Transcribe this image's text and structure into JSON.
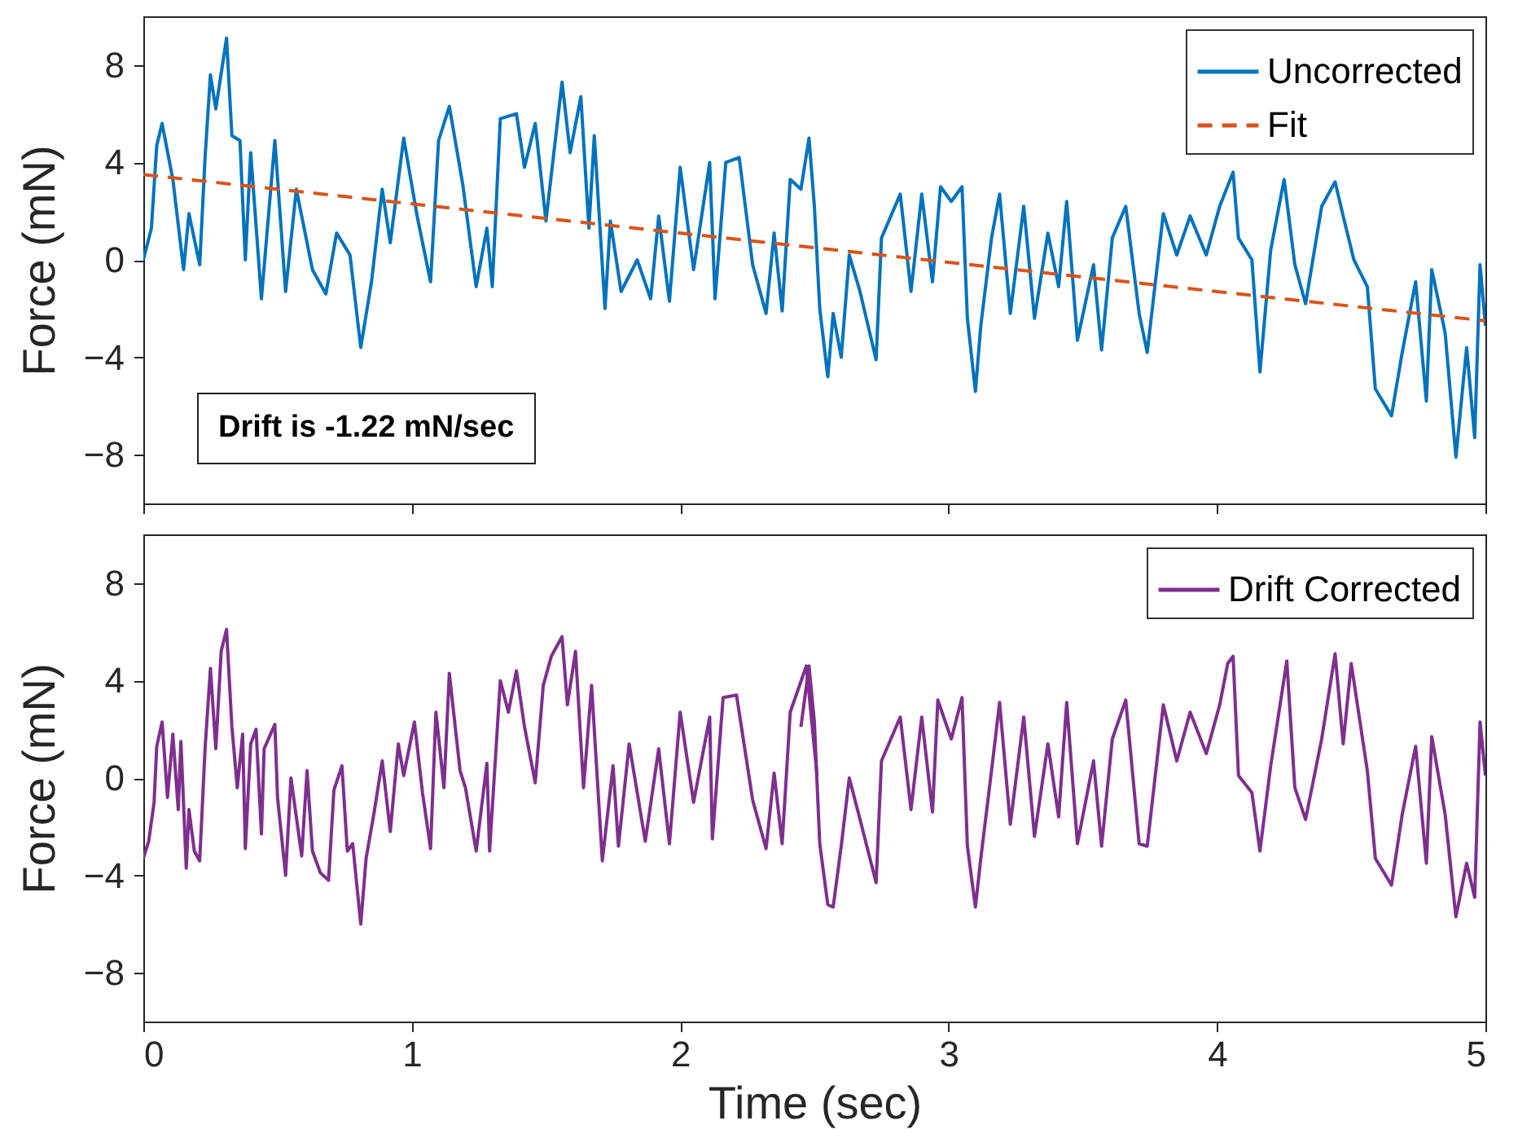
{
  "chart_data": [
    {
      "type": "line",
      "ylabel": "Force (mN)",
      "xlim": [
        0,
        5
      ],
      "xticks": [
        0,
        1,
        2,
        3,
        4,
        5
      ],
      "ylim": [
        -10,
        10
      ],
      "yticks": [
        -8,
        -4,
        0,
        4,
        8
      ],
      "tick_labels": "y",
      "legend": "top right",
      "grid": false,
      "annotations": [
        "Drift is -1.22 mN/sec"
      ],
      "x": [
        0.0,
        0.03,
        0.05,
        0.07,
        0.11,
        0.15,
        0.17,
        0.21,
        0.23,
        0.25,
        0.27,
        0.31,
        0.33,
        0.36,
        0.38,
        0.4,
        0.44,
        0.49,
        0.53,
        0.57,
        0.63,
        0.68,
        0.72,
        0.77,
        0.81,
        0.85,
        0.89,
        0.92,
        0.97,
        1.02,
        1.07,
        1.1,
        1.14,
        1.19,
        1.24,
        1.28,
        1.3,
        1.33,
        1.39,
        1.42,
        1.46,
        1.5,
        1.56,
        1.59,
        1.63,
        1.66,
        1.68,
        1.72,
        1.74,
        1.78,
        1.84,
        1.89,
        1.92,
        1.96,
        2.0,
        2.05,
        2.11,
        2.13,
        2.17,
        2.22,
        2.27,
        2.32,
        2.35,
        2.38,
        2.41,
        2.45,
        2.48,
        2.5,
        2.52,
        2.55,
        2.57,
        2.6,
        2.63,
        2.67,
        2.73,
        2.75,
        2.82,
        2.86,
        2.9,
        2.94,
        2.97,
        3.01,
        3.05,
        3.07,
        3.1,
        3.12,
        3.16,
        3.19,
        3.23,
        3.28,
        3.32,
        3.37,
        3.41,
        3.44,
        3.48,
        3.54,
        3.57,
        3.61,
        3.66,
        3.71,
        3.74,
        3.8,
        3.85,
        3.9,
        3.96,
        4.01,
        4.06,
        4.08,
        4.13,
        4.16,
        4.2,
        4.25,
        4.29,
        4.33,
        4.39,
        4.44,
        4.47,
        4.51,
        4.56,
        4.59,
        4.65,
        4.69,
        4.74,
        4.78,
        4.8,
        4.85,
        4.89,
        4.93,
        4.96,
        4.98,
        5.0
      ],
      "series": [
        {
          "name": "Uncorrected",
          "color": "#0072bd",
          "line_style": "solid",
          "values": [
            0.0,
            1.3,
            4.7,
            5.6,
            3.3,
            -0.4,
            1.9,
            -0.2,
            4.2,
            7.6,
            6.2,
            9.1,
            5.1,
            4.9,
            0.0,
            4.4,
            -1.6,
            4.9,
            -1.3,
            2.9,
            -0.4,
            -1.4,
            1.1,
            0.2,
            -3.6,
            -0.9,
            2.9,
            0.7,
            5.0,
            1.8,
            -0.9,
            4.9,
            6.3,
            3.1,
            -1.1,
            1.3,
            -1.1,
            5.8,
            6.0,
            3.8,
            5.6,
            1.6,
            7.3,
            4.4,
            6.7,
            1.3,
            5.1,
            -2.0,
            1.6,
            -1.3,
            0.0,
            -1.6,
            1.8,
            -1.7,
            3.8,
            -0.4,
            4.0,
            -1.6,
            4.0,
            4.2,
            -0.2,
            -2.2,
            1.1,
            -2.1,
            3.3,
            2.9,
            5.0,
            2.2,
            -2.0,
            -4.8,
            -2.2,
            -4.0,
            0.2,
            -1.3,
            -4.1,
            0.9,
            2.7,
            -1.3,
            2.7,
            -0.9,
            3.0,
            2.4,
            3.0,
            -2.4,
            -5.4,
            -2.7,
            0.9,
            2.7,
            -2.2,
            2.2,
            -2.4,
            1.1,
            -1.1,
            2.4,
            -3.3,
            -0.2,
            -3.7,
            0.9,
            2.2,
            -2.2,
            -3.8,
            1.9,
            0.2,
            1.8,
            0.2,
            2.2,
            3.6,
            0.9,
            0.0,
            -4.6,
            0.4,
            3.3,
            -0.2,
            -1.8,
            2.2,
            3.2,
            1.8,
            0.0,
            -1.1,
            -5.3,
            -6.4,
            -3.8,
            -0.9,
            -5.8,
            -0.4,
            -3.0,
            -8.1,
            -3.6,
            -7.3,
            -0.2,
            -2.7
          ]
        },
        {
          "name": "Fit",
          "color": "#d95319",
          "line_style": "dashed",
          "x": [
            0,
            5
          ],
          "values": [
            3.5,
            -2.5
          ]
        }
      ]
    },
    {
      "type": "line",
      "xlabel": "Time (sec)",
      "ylabel": "Force (mN)",
      "xlim": [
        0,
        5
      ],
      "xticks": [
        0,
        1,
        2,
        3,
        4,
        5
      ],
      "ylim": [
        -10,
        10
      ],
      "yticks": [
        -8,
        -4,
        0,
        4,
        8
      ],
      "legend": "top right",
      "grid": false,
      "x": [
        0.0,
        0.02,
        0.04,
        0.05,
        0.07,
        0.09,
        0.11,
        0.13,
        0.14,
        0.16,
        0.17,
        0.19,
        0.21,
        0.23,
        0.25,
        0.27,
        0.29,
        0.31,
        0.33,
        0.35,
        0.37,
        0.38,
        0.4,
        0.42,
        0.44,
        0.45,
        0.49,
        0.5,
        0.53,
        0.55,
        0.59,
        0.61,
        0.63,
        0.66,
        0.69,
        0.71,
        0.74,
        0.76,
        0.78,
        0.81,
        0.83,
        0.86,
        0.89,
        0.92,
        0.95,
        0.97,
        1.01,
        1.04,
        1.07,
        1.09,
        1.12,
        1.14,
        1.18,
        1.2,
        1.24,
        1.28,
        1.29,
        1.33,
        1.36,
        1.39,
        1.42,
        1.46,
        1.49,
        1.52,
        1.56,
        1.58,
        1.61,
        1.64,
        1.67,
        1.71,
        1.75,
        1.77,
        1.81,
        1.87,
        1.92,
        1.96,
        2.0,
        2.05,
        2.11,
        2.12,
        2.16,
        2.21,
        2.27,
        2.32,
        2.35,
        2.38,
        2.41,
        2.47,
        2.51
      ],
      "series": [
        {
          "name": "Drift Corrected",
          "color": "#7e2f8e",
          "values": [
            -3.3,
            -2.6,
            -1.0,
            1.3,
            2.3,
            -0.8,
            1.8,
            -1.3,
            1.5,
            -3.7,
            -1.3,
            -3.0,
            -3.4,
            1.2,
            4.5,
            1.2,
            5.2,
            6.1,
            2.1,
            -0.4,
            1.8,
            -2.9,
            1.4,
            2.0,
            -2.3,
            1.2,
            2.2,
            -0.8,
            -4.0,
            0.0,
            -3.2,
            0.3,
            -3.0,
            -3.9,
            -4.2,
            -0.5,
            0.5,
            -3.0,
            -2.7,
            -6.0,
            -3.3,
            -1.4,
            0.7,
            -2.2,
            1.4,
            0.1,
            2.3,
            -0.6,
            -2.9,
            2.7,
            -0.4,
            4.3,
            0.3,
            -0.4,
            -3.0,
            0.6,
            -3.0,
            4.0,
            2.7,
            4.4,
            2.1,
            -0.2,
            3.8,
            5.0,
            5.8,
            3.0,
            5.2,
            -0.4,
            3.8,
            -3.4,
            0.5,
            -2.8,
            1.4,
            -2.6,
            1.2,
            -2.7,
            2.7,
            -1.0,
            2.5,
            -2.5,
            3.3,
            3.4,
            -0.9,
            -2.9,
            0.2,
            -2.7,
            2.7,
            4.6,
            0.1
          ]
        },
        {
          "name": null,
          "color": "#7e2f8e",
          "x": [
            2.45,
            2.48,
            2.5,
            2.52,
            2.55,
            2.57,
            2.6,
            2.63,
            2.67,
            2.73,
            2.75,
            2.82,
            2.86,
            2.9,
            2.94,
            2.96,
            3.01,
            3.05,
            3.07,
            3.1,
            3.12,
            3.16,
            3.19,
            3.23,
            3.28,
            3.32,
            3.37,
            3.41,
            3.44,
            3.48,
            3.54,
            3.57,
            3.61,
            3.66,
            3.71,
            3.74,
            3.8,
            3.85,
            3.9,
            3.96,
            4.01,
            4.04,
            4.06,
            4.08,
            4.13,
            4.16,
            4.2,
            4.26,
            4.29,
            4.33,
            4.39,
            4.44,
            4.47,
            4.5,
            4.56,
            4.59,
            4.65,
            4.69,
            4.74,
            4.78,
            4.8,
            4.85,
            4.89,
            4.93,
            4.96,
            4.98,
            5.0
          ],
          "values": [
            2.1,
            4.6,
            2.3,
            -2.7,
            -5.2,
            -5.3,
            -2.8,
            0.0,
            -1.7,
            -4.3,
            0.7,
            2.5,
            -1.3,
            2.5,
            -1.4,
            3.2,
            1.6,
            3.3,
            -2.8,
            -5.3,
            -3.3,
            0.3,
            3.1,
            -1.9,
            2.5,
            -2.4,
            1.4,
            -1.6,
            3.1,
            -2.7,
            0.7,
            -2.8,
            1.6,
            3.2,
            -2.7,
            -2.8,
            3.0,
            0.7,
            2.7,
            1.0,
            3.0,
            4.7,
            5.0,
            0.1,
            -0.6,
            -3.0,
            0.5,
            4.8,
            -0.4,
            -1.7,
            1.6,
            5.1,
            1.4,
            4.7,
            0.3,
            -3.3,
            -4.4,
            -1.5,
            1.3,
            -3.5,
            1.7,
            -1.5,
            -5.7,
            -3.5,
            -4.9,
            2.3,
            0.1
          ]
        }
      ]
    }
  ]
}
